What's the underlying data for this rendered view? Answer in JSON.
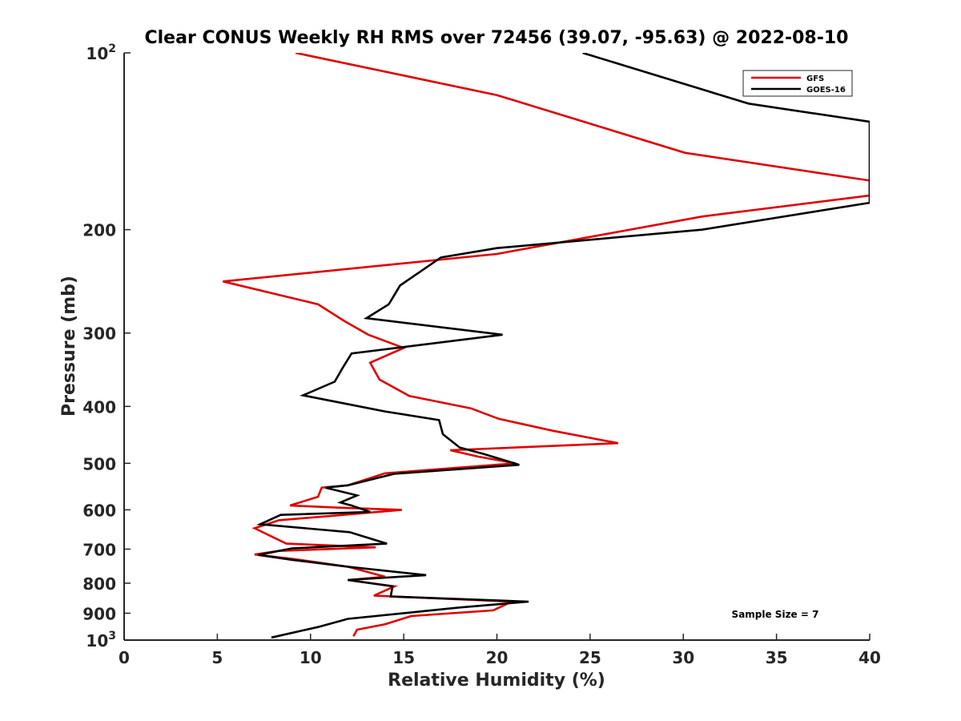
{
  "chart_data": {
    "type": "line",
    "title": "Clear CONUS Weekly RH RMS over 72456 (39.07, -95.63) @ 2022-08-10",
    "xlabel": "Relative Humidity (%)",
    "ylabel": "Pressure (mb)",
    "xlim": [
      0,
      40
    ],
    "ylim": [
      100,
      1000
    ],
    "yscale": "log",
    "y_reversed": true,
    "x_ticks": [
      0,
      5,
      10,
      15,
      20,
      25,
      30,
      35,
      40
    ],
    "x_tick_labels": [
      "0",
      "5",
      "10",
      "15",
      "20",
      "25",
      "30",
      "35",
      "40"
    ],
    "y_ticks": [
      100,
      200,
      300,
      400,
      500,
      600,
      700,
      800,
      900,
      1000
    ],
    "y_tick_labels": [
      {
        "base": "10",
        "exp": "2"
      },
      {
        "base": "200",
        "exp": ""
      },
      {
        "base": "300",
        "exp": ""
      },
      {
        "base": "400",
        "exp": ""
      },
      {
        "base": "500",
        "exp": ""
      },
      {
        "base": "600",
        "exp": ""
      },
      {
        "base": "700",
        "exp": ""
      },
      {
        "base": "800",
        "exp": ""
      },
      {
        "base": "900",
        "exp": ""
      },
      {
        "base": "10",
        "exp": "3"
      }
    ],
    "legend_position": "top-right",
    "annotation": "Sample Size = 7",
    "series": [
      {
        "name": "GFS",
        "color": "#e00000",
        "x": [
          9.2,
          20,
          30.1,
          40,
          40,
          31,
          20,
          5.3,
          10.4,
          11.8,
          13.1,
          15.0,
          13.2,
          13.7,
          15.3,
          18.6,
          20.1,
          23.0,
          26.5,
          17.5,
          19.0,
          21.0,
          14.0,
          12.0,
          10.6,
          10.4,
          8.9,
          11.5,
          14.9,
          11.0,
          8.3,
          7.0,
          8.7,
          13.5,
          8.3,
          7.0,
          9.0,
          12.0,
          14.0,
          12.0,
          14.5,
          13.4,
          20.8,
          19.8,
          15.4,
          14.0,
          12.5,
          12.3
        ],
        "y": [
          100,
          118,
          148,
          165,
          175,
          190,
          220,
          245,
          268,
          286,
          302,
          318,
          337,
          360,
          384,
          403,
          420,
          440,
          462,
          475,
          487,
          500,
          520,
          545,
          550,
          570,
          590,
          595,
          600,
          615,
          625,
          645,
          685,
          695,
          705,
          715,
          727,
          750,
          780,
          790,
          810,
          840,
          860,
          890,
          910,
          940,
          960,
          985
        ]
      },
      {
        "name": "GOES-16",
        "color": "#000000",
        "x": [
          24.6,
          33.5,
          40,
          40,
          31,
          20,
          17.0,
          14.8,
          14.2,
          13.0,
          20.3,
          12.2,
          11.7,
          11.3,
          9.6,
          14.0,
          16.9,
          17.1,
          18.0,
          19.3,
          21.2,
          14.5,
          12.0,
          10.8,
          12.5,
          11.6,
          12.2,
          13.2,
          8.4,
          7.3,
          12.1,
          14.1,
          9.0,
          7.2,
          9.0,
          12.0,
          16.2,
          12.0,
          14.4,
          14.3,
          21.7,
          18.0,
          12.0,
          10.4,
          7.9
        ],
        "y": [
          100,
          122,
          131,
          180,
          200,
          215,
          223,
          249,
          268,
          283,
          302,
          325,
          345,
          363,
          383,
          408,
          422,
          446,
          470,
          482,
          503,
          521,
          545,
          550,
          567,
          583,
          590,
          605,
          612,
          635,
          655,
          685,
          698,
          716,
          730,
          750,
          775,
          790,
          810,
          843,
          860,
          880,
          920,
          950,
          990
        ]
      }
    ]
  }
}
